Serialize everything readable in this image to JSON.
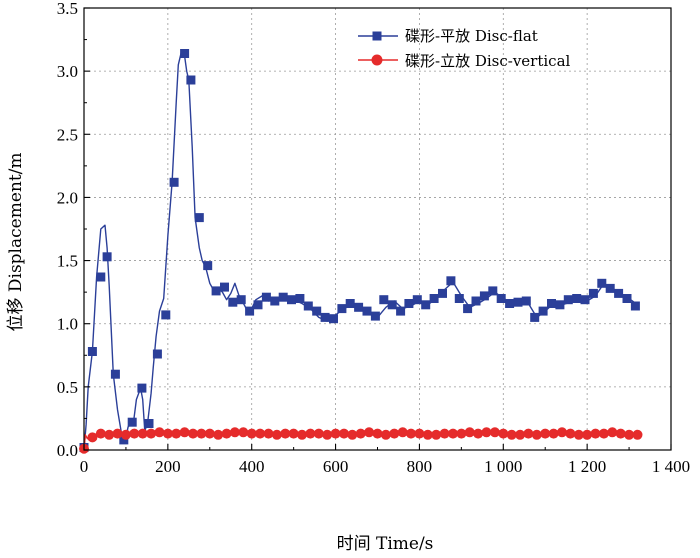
{
  "chart_data": {
    "type": "line",
    "title": "",
    "xlabel": "时间 Time/s",
    "ylabel": "位移 Displacement/m",
    "xlim": [
      0,
      1400
    ],
    "ylim": [
      0,
      3.5
    ],
    "xticks": [
      0,
      200,
      400,
      600,
      800,
      1000,
      1200,
      1400
    ],
    "xtick_labels": [
      "0",
      "200",
      "400",
      "600",
      "800",
      "1 000",
      "1 200",
      "1 400"
    ],
    "yticks": [
      0.0,
      0.5,
      1.0,
      1.5,
      2.0,
      2.5,
      3.0,
      3.5
    ],
    "ytick_labels": [
      "0.0",
      "0.5",
      "1.0",
      "1.5",
      "2.0",
      "2.5",
      "3.0",
      "3.5"
    ],
    "grid": true,
    "legend_position": "top-right",
    "series": [
      {
        "name": "碟形-平放 Disc-flat",
        "color": "#2b3f99",
        "marker": "square",
        "line_x": [
          0,
          5,
          10,
          20,
          30,
          40,
          50,
          55,
          60,
          70,
          80,
          90,
          100,
          105,
          110,
          118,
          125,
          135,
          140,
          145,
          152,
          160,
          165,
          172,
          180,
          190,
          200,
          210,
          220,
          225,
          232,
          240,
          245,
          250,
          258,
          265,
          275,
          282,
          290,
          300,
          310,
          320,
          330,
          340,
          350,
          360,
          370,
          375,
          382,
          390,
          400,
          410,
          425,
          440,
          460,
          480,
          500,
          520,
          540,
          560,
          580,
          600,
          620,
          640,
          660,
          680,
          700,
          720,
          740,
          760,
          780,
          800,
          820,
          840,
          860,
          880,
          900,
          920,
          940,
          960,
          980,
          1000,
          1020,
          1040,
          1060,
          1080,
          1100,
          1120,
          1140,
          1160,
          1180,
          1200,
          1220,
          1240,
          1260,
          1280,
          1300,
          1320
        ],
        "line_y": [
          0.0,
          0.2,
          0.5,
          0.78,
          1.37,
          1.75,
          1.78,
          1.6,
          1.3,
          0.6,
          0.32,
          0.12,
          0.1,
          0.18,
          0.22,
          0.22,
          0.4,
          0.49,
          0.4,
          0.15,
          0.22,
          0.45,
          0.65,
          0.9,
          1.1,
          1.2,
          1.7,
          2.12,
          2.75,
          3.05,
          3.15,
          3.12,
          3.0,
          2.93,
          2.4,
          1.84,
          1.6,
          1.5,
          1.45,
          1.32,
          1.26,
          1.28,
          1.25,
          1.19,
          1.24,
          1.32,
          1.22,
          1.19,
          1.15,
          1.1,
          1.12,
          1.19,
          1.22,
          1.18,
          1.2,
          1.22,
          1.19,
          1.16,
          1.12,
          1.05,
          1.02,
          1.07,
          1.12,
          1.15,
          1.12,
          1.08,
          1.05,
          1.13,
          1.18,
          1.12,
          1.14,
          1.18,
          1.15,
          1.2,
          1.27,
          1.33,
          1.22,
          1.13,
          1.16,
          1.2,
          1.25,
          1.2,
          1.17,
          1.15,
          1.16,
          1.05,
          1.1,
          1.16,
          1.15,
          1.17,
          1.2,
          1.18,
          1.22,
          1.32,
          1.28,
          1.24,
          1.2,
          1.15
        ],
        "marker_x": [
          0,
          20,
          40,
          55,
          75,
          95,
          115,
          138,
          155,
          175,
          195,
          215,
          240,
          255,
          275,
          295,
          315,
          335,
          355,
          375,
          395,
          415,
          435,
          455,
          475,
          495,
          515,
          535,
          555,
          575,
          595,
          615,
          635,
          655,
          675,
          695,
          715,
          735,
          755,
          775,
          795,
          815,
          835,
          855,
          875,
          895,
          915,
          935,
          955,
          975,
          995,
          1015,
          1035,
          1055,
          1075,
          1095,
          1115,
          1135,
          1155,
          1175,
          1195,
          1215,
          1235,
          1255,
          1275,
          1295,
          1315
        ],
        "marker_y": [
          0.02,
          0.78,
          1.37,
          1.53,
          0.6,
          0.08,
          0.22,
          0.49,
          0.21,
          0.76,
          1.07,
          2.12,
          3.14,
          2.93,
          1.84,
          1.46,
          1.26,
          1.29,
          1.17,
          1.19,
          1.1,
          1.15,
          1.21,
          1.18,
          1.21,
          1.19,
          1.2,
          1.14,
          1.1,
          1.05,
          1.04,
          1.12,
          1.16,
          1.13,
          1.1,
          1.06,
          1.19,
          1.15,
          1.1,
          1.16,
          1.19,
          1.15,
          1.2,
          1.24,
          1.34,
          1.2,
          1.12,
          1.18,
          1.22,
          1.26,
          1.2,
          1.16,
          1.17,
          1.18,
          1.05,
          1.1,
          1.16,
          1.15,
          1.19,
          1.2,
          1.19,
          1.24,
          1.32,
          1.28,
          1.24,
          1.2,
          1.14
        ]
      },
      {
        "name": "碟形-立放 Disc-vertical",
        "color": "#e52b2b",
        "marker": "circle",
        "line_x": [
          0,
          3,
          8,
          15,
          25,
          35,
          50,
          70,
          90,
          110,
          130,
          150,
          170,
          190,
          210,
          230,
          250,
          270,
          290,
          310,
          330,
          350,
          370,
          390,
          410,
          430,
          450,
          470,
          490,
          510,
          530,
          550,
          570,
          590,
          610,
          630,
          650,
          670,
          690,
          710,
          730,
          750,
          770,
          790,
          810,
          830,
          850,
          870,
          890,
          910,
          930,
          950,
          970,
          990,
          1010,
          1030,
          1050,
          1070,
          1090,
          1110,
          1130,
          1150,
          1170,
          1190,
          1210,
          1230,
          1250,
          1270,
          1290,
          1310,
          1320
        ],
        "line_y": [
          0.0,
          0.12,
          0.09,
          0.1,
          0.12,
          0.14,
          0.13,
          0.12,
          0.13,
          0.12,
          0.13,
          0.13,
          0.14,
          0.13,
          0.13,
          0.13,
          0.14,
          0.13,
          0.13,
          0.13,
          0.12,
          0.13,
          0.14,
          0.14,
          0.13,
          0.13,
          0.13,
          0.12,
          0.13,
          0.13,
          0.12,
          0.13,
          0.13,
          0.12,
          0.13,
          0.13,
          0.12,
          0.13,
          0.14,
          0.13,
          0.12,
          0.13,
          0.14,
          0.13,
          0.13,
          0.12,
          0.12,
          0.13,
          0.13,
          0.13,
          0.14,
          0.13,
          0.14,
          0.14,
          0.13,
          0.12,
          0.12,
          0.13,
          0.12,
          0.13,
          0.13,
          0.14,
          0.13,
          0.12,
          0.12,
          0.13,
          0.13,
          0.14,
          0.13,
          0.12,
          0.12
        ],
        "marker_x": [
          0,
          20,
          40,
          60,
          80,
          100,
          120,
          140,
          160,
          180,
          200,
          220,
          240,
          260,
          280,
          300,
          320,
          340,
          360,
          380,
          400,
          420,
          440,
          460,
          480,
          500,
          520,
          540,
          560,
          580,
          600,
          620,
          640,
          660,
          680,
          700,
          720,
          740,
          760,
          780,
          800,
          820,
          840,
          860,
          880,
          900,
          920,
          940,
          960,
          980,
          1000,
          1020,
          1040,
          1060,
          1080,
          1100,
          1120,
          1140,
          1160,
          1180,
          1200,
          1220,
          1240,
          1260,
          1280,
          1300,
          1320
        ],
        "marker_y": [
          0.01,
          0.1,
          0.13,
          0.12,
          0.13,
          0.12,
          0.13,
          0.13,
          0.13,
          0.14,
          0.13,
          0.13,
          0.14,
          0.13,
          0.13,
          0.13,
          0.12,
          0.13,
          0.14,
          0.14,
          0.13,
          0.13,
          0.13,
          0.12,
          0.13,
          0.13,
          0.12,
          0.13,
          0.13,
          0.12,
          0.13,
          0.13,
          0.12,
          0.13,
          0.14,
          0.13,
          0.12,
          0.13,
          0.14,
          0.13,
          0.13,
          0.12,
          0.12,
          0.13,
          0.13,
          0.13,
          0.14,
          0.13,
          0.14,
          0.14,
          0.13,
          0.12,
          0.12,
          0.13,
          0.12,
          0.13,
          0.13,
          0.14,
          0.13,
          0.12,
          0.12,
          0.13,
          0.13,
          0.14,
          0.13,
          0.12,
          0.12
        ]
      }
    ]
  }
}
